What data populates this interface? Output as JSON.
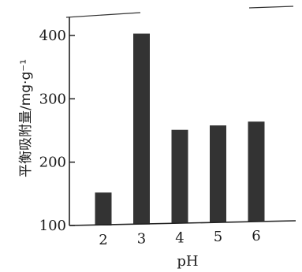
{
  "chart_data": {
    "type": "bar",
    "categories": [
      "2",
      "3",
      "4",
      "5",
      "6"
    ],
    "values": [
      152,
      403,
      251,
      258,
      264
    ],
    "title": "",
    "xlabel": "pH",
    "ylabel": "平衡吸附量/mg·g⁻¹",
    "ylim": [
      100,
      420
    ],
    "yticks": [
      "100",
      "200",
      "300",
      "400"
    ],
    "bar_color": "#333333",
    "grid": false
  }
}
